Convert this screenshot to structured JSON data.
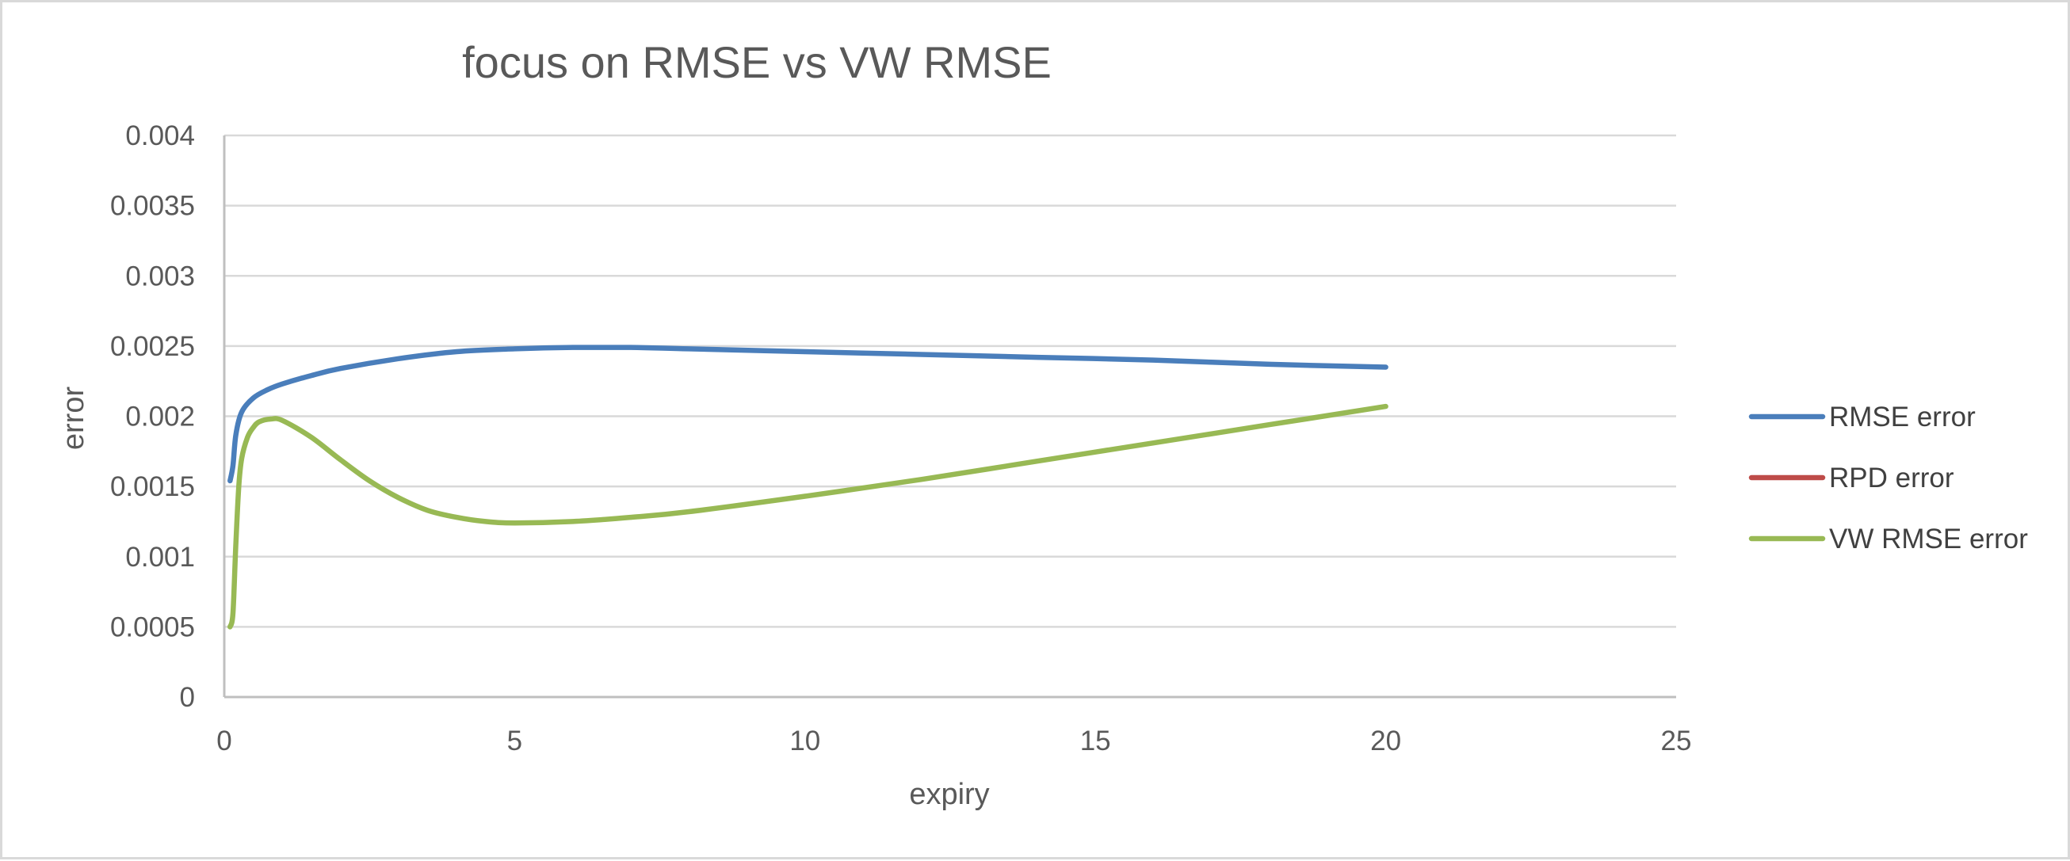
{
  "chart_data": {
    "type": "line",
    "title": "focus on RMSE vs VW RMSE",
    "xlabel": "expiry",
    "ylabel": "error",
    "xlim": [
      0,
      25
    ],
    "ylim": [
      0,
      0.004
    ],
    "x_ticks": [
      0,
      5,
      10,
      15,
      20,
      25
    ],
    "x_tick_labels": [
      "0",
      "5",
      "10",
      "15",
      "20",
      "25"
    ],
    "y_ticks": [
      0,
      0.0005,
      0.001,
      0.0015,
      0.002,
      0.0025,
      0.003,
      0.0035,
      0.004
    ],
    "y_tick_labels": [
      "0",
      "0.0005",
      "0.001",
      "0.0015",
      "0.002",
      "0.0025",
      "0.003",
      "0.0035",
      "0.004"
    ],
    "grid": "horizontal",
    "legend_position": "right",
    "series": [
      {
        "name": "RMSE error",
        "color": "#4a7ebb",
        "x": [
          0.1,
          0.15,
          0.2,
          0.3,
          0.5,
          0.75,
          1,
          1.5,
          2,
          3,
          4,
          5,
          6,
          7,
          8,
          10,
          12,
          14,
          16,
          18,
          20
        ],
        "y": [
          0.00154,
          0.00165,
          0.00187,
          0.00203,
          0.00213,
          0.00219,
          0.00223,
          0.00229,
          0.00234,
          0.00241,
          0.00246,
          0.00248,
          0.00249,
          0.00249,
          0.00248,
          0.00246,
          0.00244,
          0.00242,
          0.0024,
          0.00237,
          0.00235
        ]
      },
      {
        "name": "RPD error",
        "color": "#be4b48",
        "x": [],
        "y": []
      },
      {
        "name": "VW RMSE error",
        "color": "#98b954",
        "x": [
          0.1,
          0.15,
          0.2,
          0.25,
          0.3,
          0.4,
          0.5,
          0.6,
          0.8,
          1,
          1.5,
          2,
          2.5,
          3,
          3.5,
          4,
          4.5,
          5,
          6,
          7,
          8,
          10,
          12,
          14,
          16,
          18,
          20
        ],
        "y": [
          0.0005,
          0.0006,
          0.0011,
          0.0015,
          0.0017,
          0.00185,
          0.00192,
          0.00196,
          0.00198,
          0.00197,
          0.00185,
          0.00169,
          0.00154,
          0.00142,
          0.00133,
          0.00128,
          0.00125,
          0.00124,
          0.00125,
          0.00128,
          0.00132,
          0.00143,
          0.00155,
          0.00168,
          0.00181,
          0.00194,
          0.00207
        ]
      }
    ]
  }
}
